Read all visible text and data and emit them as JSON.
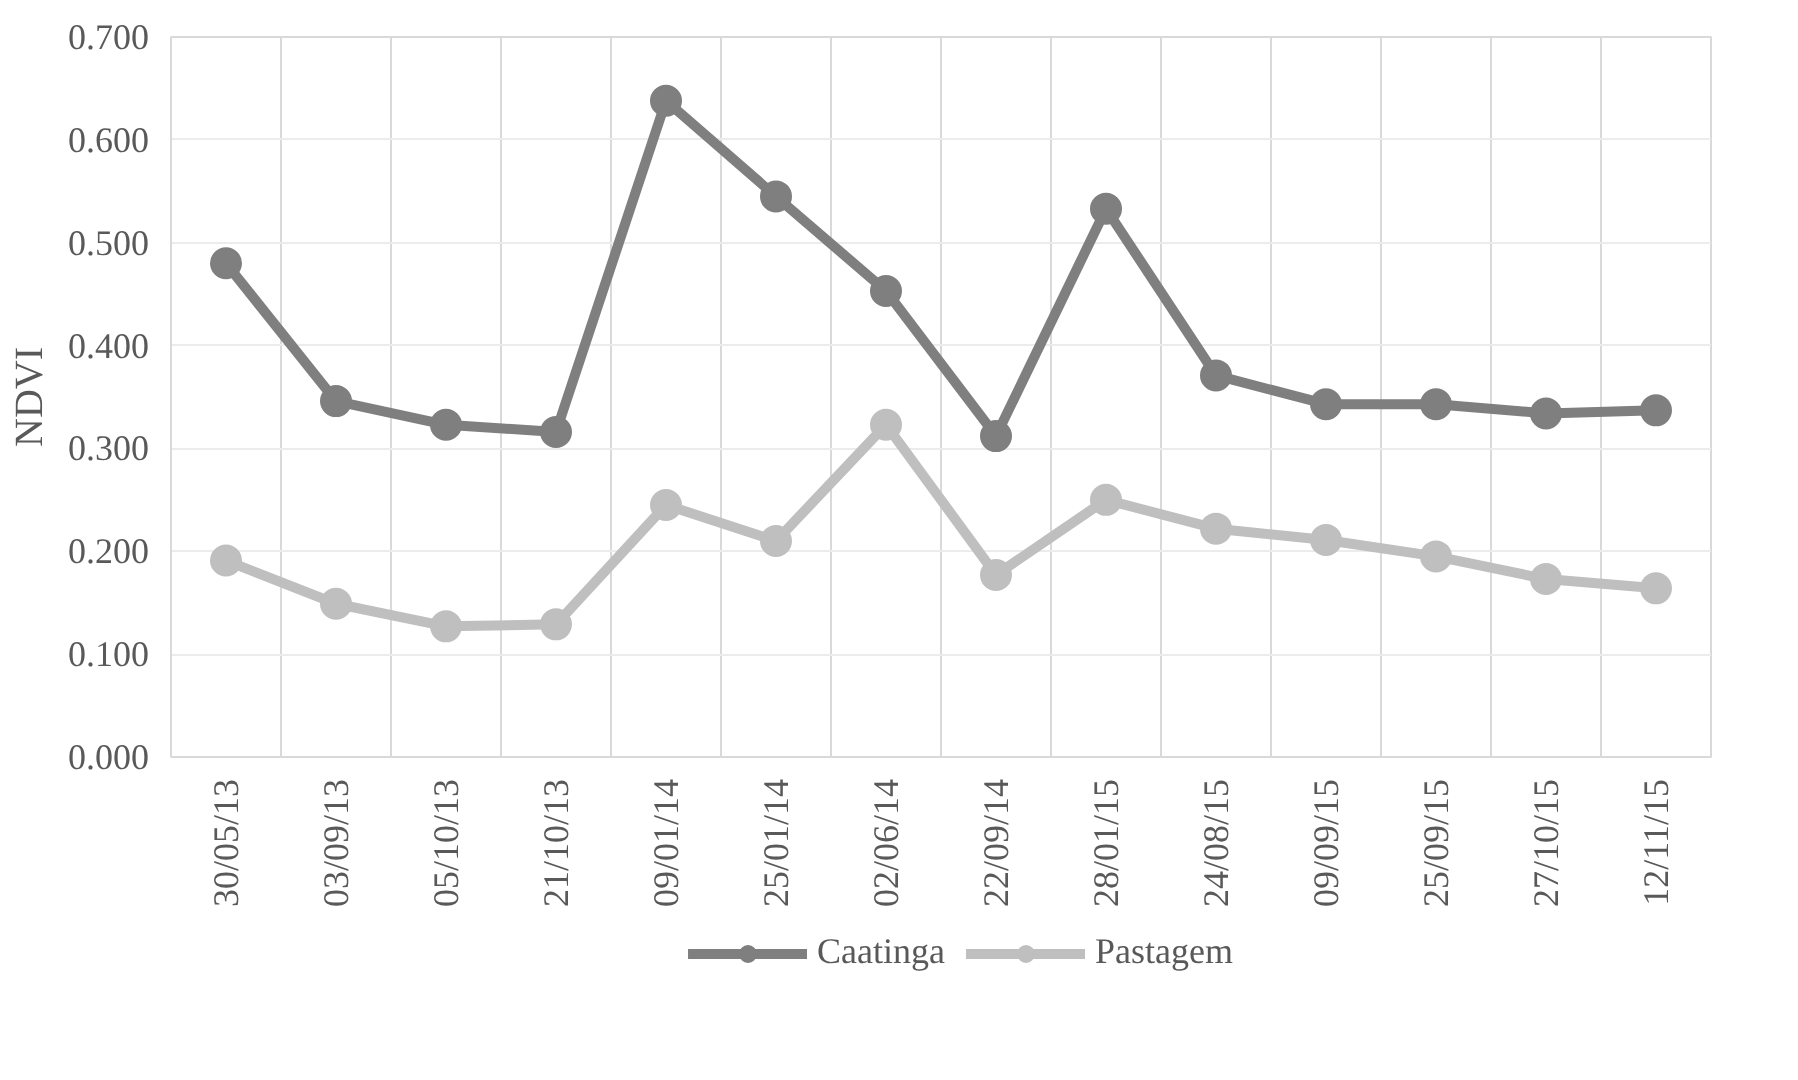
{
  "chart_data": {
    "type": "line",
    "ylabel": "NDVI",
    "categories": [
      "30/05/13",
      "03/09/13",
      "05/10/13",
      "21/10/13",
      "09/01/14",
      "25/01/14",
      "02/06/14",
      "22/09/14",
      "28/01/15",
      "24/08/15",
      "09/09/15",
      "25/09/15",
      "27/10/15",
      "12/11/15"
    ],
    "series": [
      {
        "name": "Caatinga",
        "color": "#7f7f7f",
        "values": [
          0.48,
          0.346,
          0.323,
          0.316,
          0.638,
          0.545,
          0.453,
          0.312,
          0.533,
          0.371,
          0.343,
          0.343,
          0.334,
          0.337
        ]
      },
      {
        "name": "Pastagem",
        "color": "#bfbfbf",
        "values": [
          0.191,
          0.149,
          0.127,
          0.129,
          0.245,
          0.21,
          0.323,
          0.177,
          0.25,
          0.222,
          0.211,
          0.195,
          0.173,
          0.164
        ]
      }
    ],
    "ylim": [
      0,
      0.7
    ],
    "yticks": [
      {
        "value": 0,
        "label": "0.000"
      },
      {
        "value": 0.1,
        "label": "0.100"
      },
      {
        "value": 0.2,
        "label": "0.200"
      },
      {
        "value": 0.3,
        "label": "0.300"
      },
      {
        "value": 0.4,
        "label": "0.400"
      },
      {
        "value": 0.5,
        "label": "0.500"
      },
      {
        "value": 0.6,
        "label": "0.600"
      },
      {
        "value": 0.7,
        "label": "0.700"
      }
    ],
    "grid": true,
    "legend": "bottom",
    "marker": "circle",
    "line_style": "solid"
  }
}
